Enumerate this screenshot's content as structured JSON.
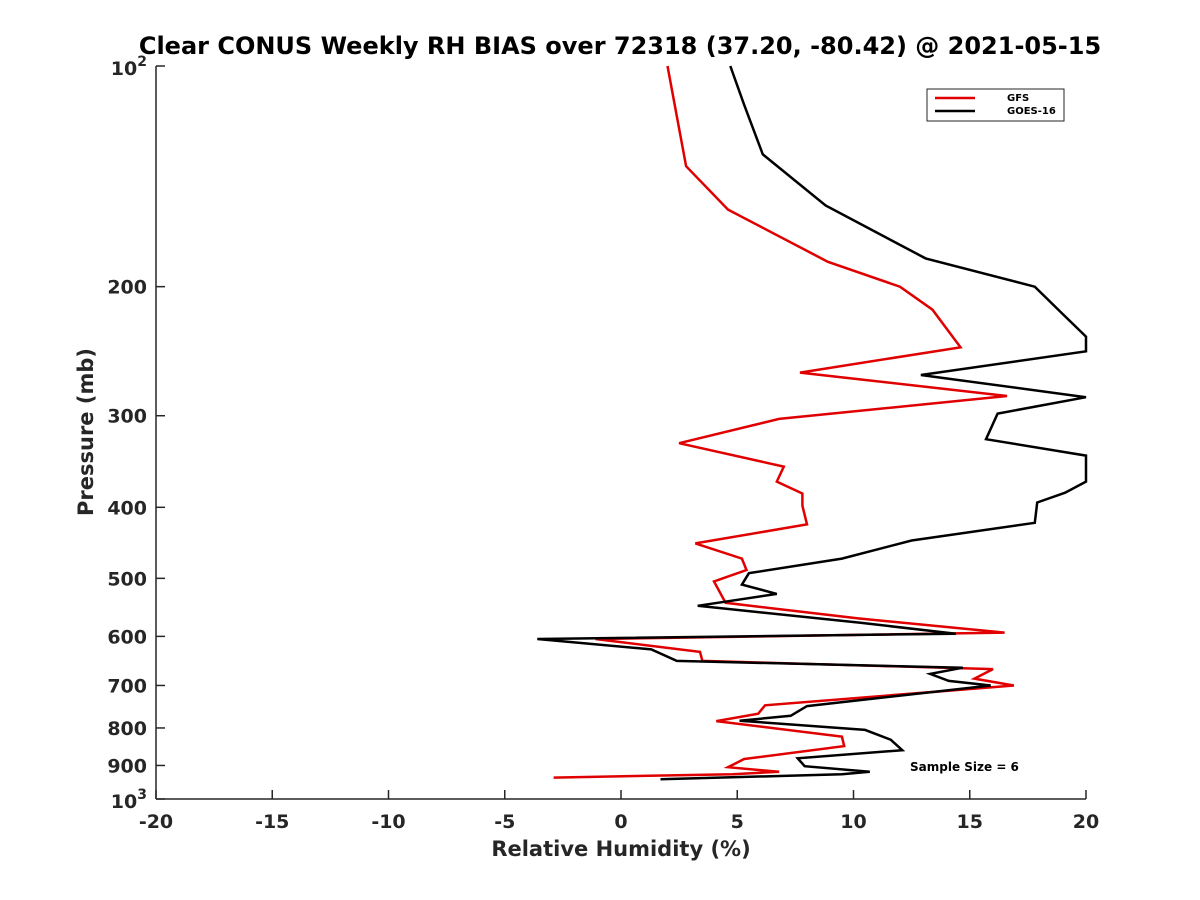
{
  "chart_data": {
    "type": "line",
    "title": "Clear CONUS Weekly RH BIAS over 72318 (37.20, -80.42) @ 2021-05-15",
    "xlabel": "Relative Humidity (%)",
    "ylabel": "Pressure (mb)",
    "xlim": [
      -20,
      20
    ],
    "ylim": [
      100,
      1000
    ],
    "y_scale": "log",
    "y_reversed": true,
    "grid": false,
    "legend_position": "top-right",
    "x_ticks": [
      "-20",
      "-15",
      "-10",
      "-5",
      "0",
      "5",
      "10",
      "15",
      "20"
    ],
    "y_ticks": [
      {
        "base": "10",
        "exp": "2"
      },
      {
        "base": "200",
        "exp": ""
      },
      {
        "base": "300",
        "exp": ""
      },
      {
        "base": "400",
        "exp": ""
      },
      {
        "base": "500",
        "exp": ""
      },
      {
        "base": "600",
        "exp": ""
      },
      {
        "base": "700",
        "exp": ""
      },
      {
        "base": "800",
        "exp": ""
      },
      {
        "base": "900",
        "exp": ""
      },
      {
        "base": "10",
        "exp": "3"
      }
    ],
    "series": [
      {
        "name": "GFS",
        "color": "#e00000",
        "points": [
          [
            2.0,
            100
          ],
          [
            2.8,
            137
          ],
          [
            4.6,
            157
          ],
          [
            8.9,
            185
          ],
          [
            12.0,
            200
          ],
          [
            13.4,
            215
          ],
          [
            14.6,
            242
          ],
          [
            7.7,
            262
          ],
          [
            16.6,
            282
          ],
          [
            6.8,
            303
          ],
          [
            2.5,
            327
          ],
          [
            7.0,
            352
          ],
          [
            6.7,
            369
          ],
          [
            7.8,
            383
          ],
          [
            7.8,
            398
          ],
          [
            8.0,
            422
          ],
          [
            3.2,
            448
          ],
          [
            5.2,
            470
          ],
          [
            5.4,
            487
          ],
          [
            4.0,
            505
          ],
          [
            4.5,
            540
          ],
          [
            10.2,
            567
          ],
          [
            16.5,
            593
          ],
          [
            -1.1,
            605
          ],
          [
            3.4,
            630
          ],
          [
            3.5,
            648
          ],
          [
            16.0,
            665
          ],
          [
            15.2,
            685
          ],
          [
            16.9,
            700
          ],
          [
            6.2,
            745
          ],
          [
            5.9,
            765
          ],
          [
            4.1,
            783
          ],
          [
            9.5,
            822
          ],
          [
            9.6,
            847
          ],
          [
            5.3,
            882
          ],
          [
            4.6,
            905
          ],
          [
            6.8,
            918
          ],
          [
            4.8,
            925
          ],
          [
            -2.9,
            935
          ]
        ]
      },
      {
        "name": "GOES-16",
        "color": "#000000",
        "points": [
          [
            4.7,
            100
          ],
          [
            5.3,
            113
          ],
          [
            6.1,
            132
          ],
          [
            8.8,
            155
          ],
          [
            13.1,
            183
          ],
          [
            17.8,
            200
          ],
          [
            19.0,
            218
          ],
          [
            20.0,
            234
          ],
          [
            20.0,
            245
          ],
          [
            12.9,
            264
          ],
          [
            20.0,
            283
          ],
          [
            16.2,
            298
          ],
          [
            15.7,
            323
          ],
          [
            20.0,
            340
          ],
          [
            20.0,
            369
          ],
          [
            19.1,
            382
          ],
          [
            17.9,
            394
          ],
          [
            17.8,
            420
          ],
          [
            12.5,
            444
          ],
          [
            9.5,
            470
          ],
          [
            5.5,
            492
          ],
          [
            5.2,
            510
          ],
          [
            6.7,
            525
          ],
          [
            3.3,
            545
          ],
          [
            10.3,
            575
          ],
          [
            14.4,
            595
          ],
          [
            -3.6,
            605
          ],
          [
            1.3,
            625
          ],
          [
            2.4,
            648
          ],
          [
            14.7,
            662
          ],
          [
            13.3,
            675
          ],
          [
            14.1,
            690
          ],
          [
            15.9,
            700
          ],
          [
            8.0,
            747
          ],
          [
            7.3,
            770
          ],
          [
            5.1,
            782
          ],
          [
            10.5,
            805
          ],
          [
            11.6,
            830
          ],
          [
            12.1,
            858
          ],
          [
            7.6,
            880
          ],
          [
            7.9,
            902
          ],
          [
            10.7,
            918
          ],
          [
            9.5,
            925
          ],
          [
            1.7,
            940
          ]
        ]
      }
    ],
    "annotation": "Sample Size = 6"
  }
}
